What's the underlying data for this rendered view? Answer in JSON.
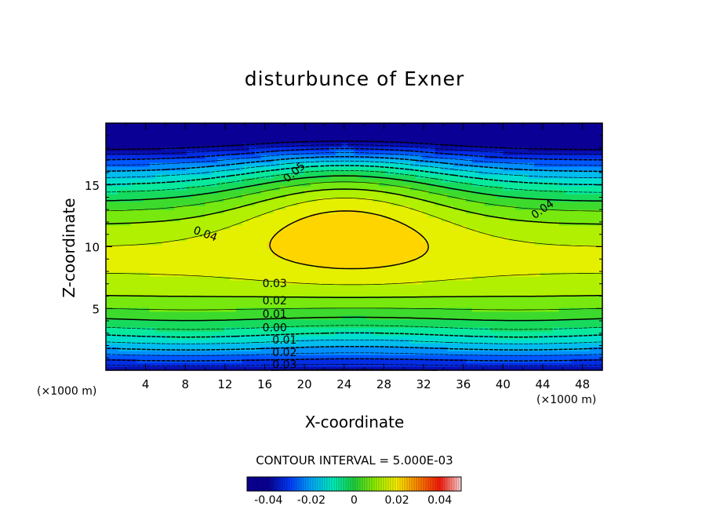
{
  "chart_data": {
    "type": "contour",
    "title": "disturbunce of Exner",
    "xlabel": "X-coordinate",
    "ylabel": "Z-coordinate",
    "x_unit": "(×1000 m)",
    "z_unit": "(×1000 m)",
    "xlim": [
      0,
      50
    ],
    "ylim": [
      0,
      20
    ],
    "x_ticks": [
      "4",
      "8",
      "12",
      "16",
      "20",
      "24",
      "28",
      "32",
      "36",
      "40",
      "44",
      "48"
    ],
    "y_ticks": [
      "5",
      "10",
      "15"
    ],
    "contour_interval_text": "CONTOUR INTERVAL = 5.000E-03",
    "contour_interval": 0.005,
    "field_range": [
      -0.04,
      0.05
    ],
    "contour_labels": [
      {
        "text": "0.05",
        "x": 19,
        "z": 16
      },
      {
        "text": "0.04",
        "x": 10,
        "z": 11
      },
      {
        "text": "0.04",
        "x": 44,
        "z": 13
      },
      {
        "text": "0.03",
        "x": 17,
        "z": 7
      },
      {
        "text": "0.02",
        "x": 17,
        "z": 5.6
      },
      {
        "text": "0.01",
        "x": 17,
        "z": 4.5
      },
      {
        "text": "0.00",
        "x": 17,
        "z": 3.4
      },
      {
        "text": "0.01",
        "x": 18,
        "z": 2.4
      },
      {
        "text": "0.02",
        "x": 18,
        "z": 1.4
      },
      {
        "text": "0.03",
        "x": 18,
        "z": 0.4
      }
    ],
    "colorbar": {
      "ticks": [
        "-0.04",
        "-0.02",
        "0",
        "0.02",
        "0.04"
      ],
      "range": [
        -0.05,
        0.05
      ]
    },
    "grid": false,
    "legend": "colorbar below plot"
  }
}
